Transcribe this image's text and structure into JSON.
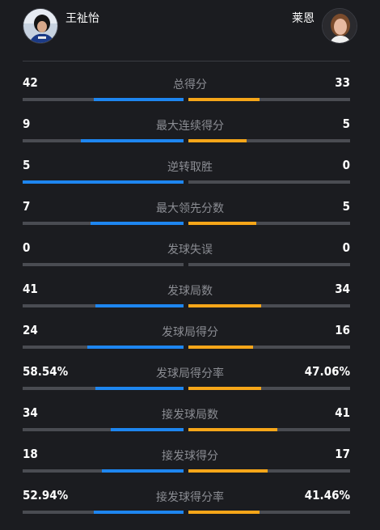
{
  "players": {
    "left": {
      "name": "王祉怡"
    },
    "right": {
      "name": "莱恩"
    }
  },
  "colors": {
    "left_accent": "#1e86f0",
    "right_accent": "#f6a619",
    "track": "#4a4c52",
    "background": "#1b1c20"
  },
  "stats": [
    {
      "label": "总得分",
      "left": "42",
      "right": "33",
      "left_share": 0.56,
      "right_share": 0.44
    },
    {
      "label": "最大连续得分",
      "left": "9",
      "right": "5",
      "left_share": 0.64,
      "right_share": 0.36
    },
    {
      "label": "逆转取胜",
      "left": "5",
      "right": "0",
      "left_share": 1.0,
      "right_share": 0.0
    },
    {
      "label": "最大领先分数",
      "left": "7",
      "right": "5",
      "left_share": 0.58,
      "right_share": 0.42
    },
    {
      "label": "发球失误",
      "left": "0",
      "right": "0",
      "left_share": 0.0,
      "right_share": 0.0
    },
    {
      "label": "发球局数",
      "left": "41",
      "right": "34",
      "left_share": 0.55,
      "right_share": 0.45
    },
    {
      "label": "发球局得分",
      "left": "24",
      "right": "16",
      "left_share": 0.6,
      "right_share": 0.4
    },
    {
      "label": "发球局得分率",
      "left": "58.54%",
      "right": "47.06%",
      "left_share": 0.55,
      "right_share": 0.45
    },
    {
      "label": "接发球局数",
      "left": "34",
      "right": "41",
      "left_share": 0.45,
      "right_share": 0.55
    },
    {
      "label": "接发球得分",
      "left": "18",
      "right": "17",
      "left_share": 0.51,
      "right_share": 0.49
    },
    {
      "label": "接发球得分率",
      "left": "52.94%",
      "right": "41.46%",
      "left_share": 0.56,
      "right_share": 0.44
    }
  ]
}
